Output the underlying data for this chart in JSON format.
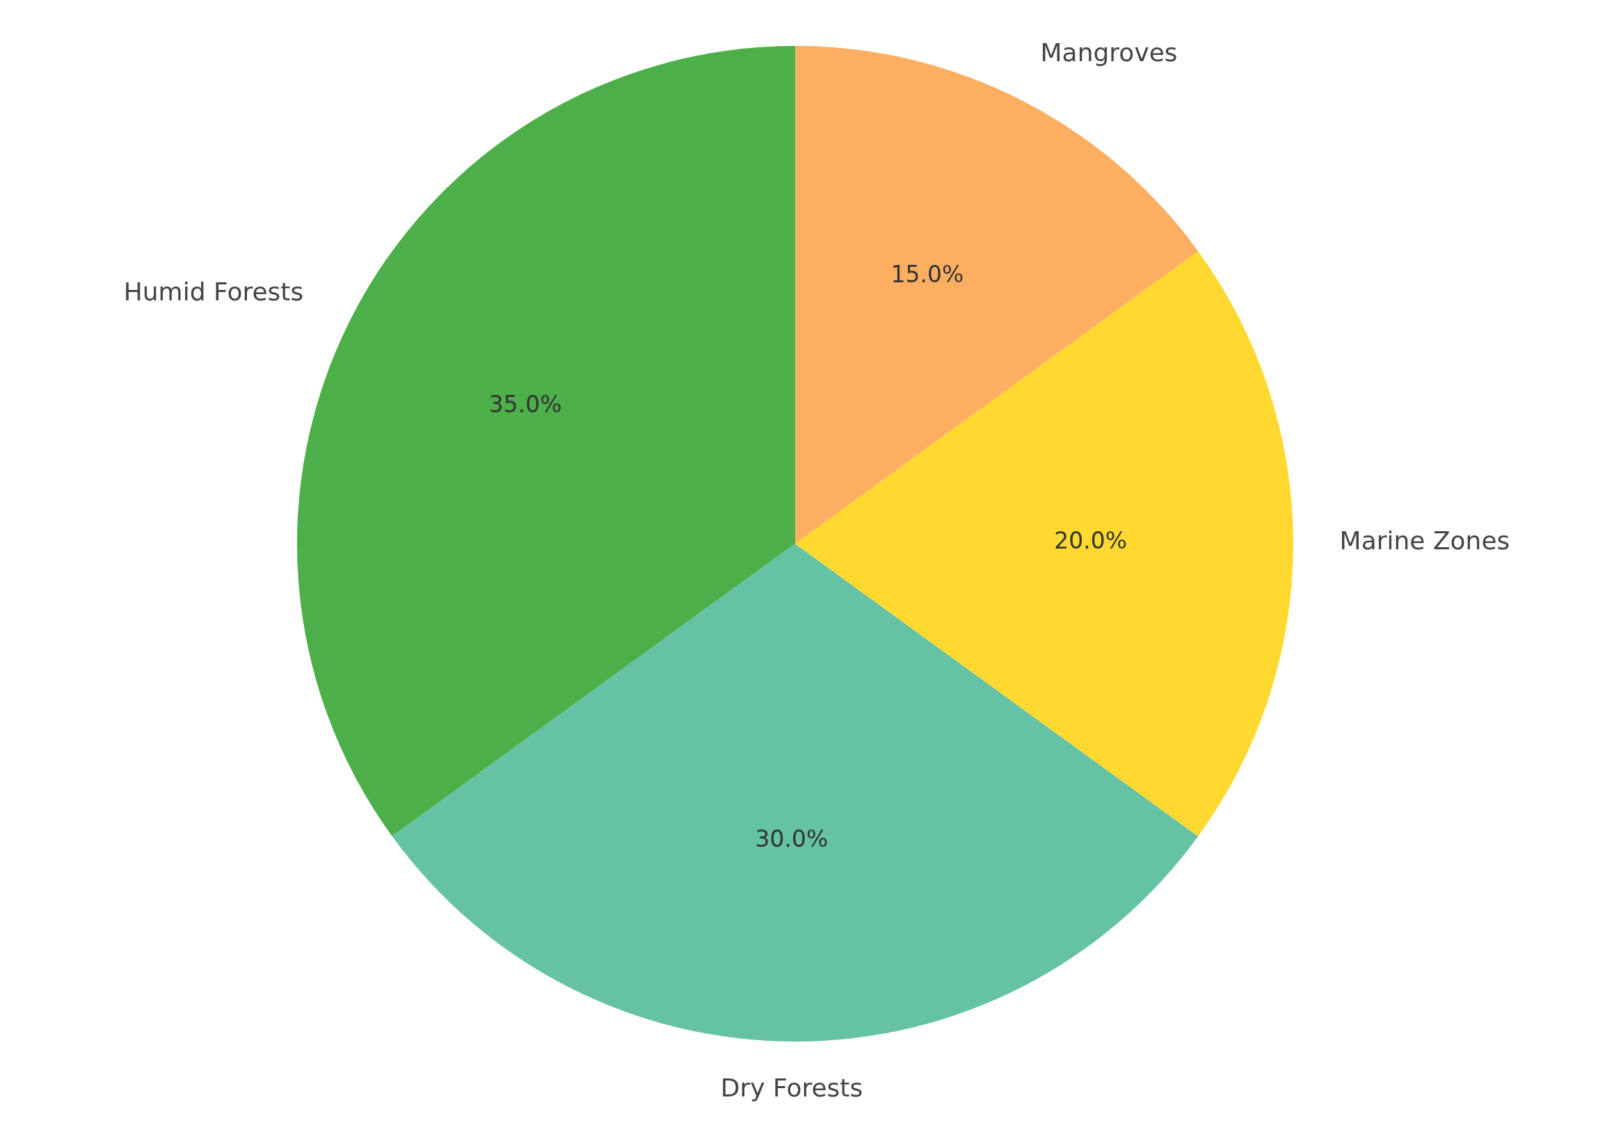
{
  "chart_data": {
    "type": "pie",
    "categories": [
      "Humid Forests",
      "Dry Forests",
      "Marine Zones",
      "Mangroves"
    ],
    "values": [
      35,
      30,
      20,
      15
    ],
    "colors": [
      "#4daf4a",
      "#66c2a5",
      "#ffd92f",
      "#fdae61"
    ],
    "value_labels": [
      "35.0%",
      "30.0%",
      "20.0%",
      "15.0%"
    ]
  }
}
